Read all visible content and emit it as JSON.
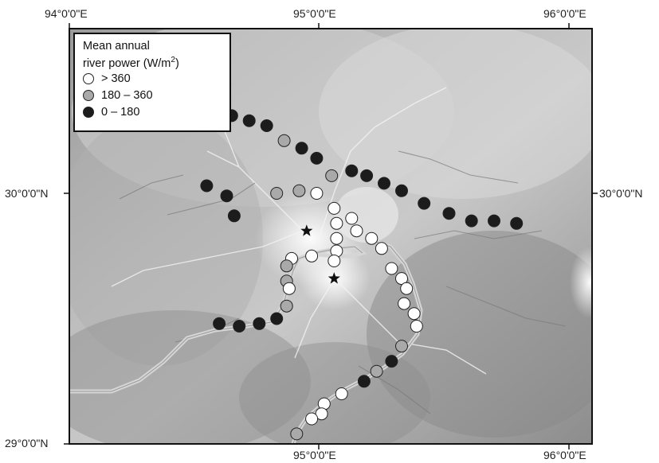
{
  "axes": {
    "top_labels": [
      "94°0'0\"E",
      "95°0'0\"E",
      "96°0'0\"E"
    ],
    "bottom_labels": [
      "95°0'0\"E",
      "96°0'0\"E"
    ],
    "left_labels": [
      "30°0'0\"N",
      "29°0'0\"N"
    ],
    "right_labels": [
      "30°0'0\"N"
    ]
  },
  "legend": {
    "title_line1": "Mean annual",
    "title_line2": "river power (W/m",
    "title_sup": "2",
    "title_close": ")",
    "items": [
      {
        "label": "> 360",
        "color": "#ffffff"
      },
      {
        "label": "180 – 360",
        "color": "#a9a9a9"
      },
      {
        "label": "0 – 180",
        "color": "#1c1c1c"
      }
    ]
  },
  "colors": {
    "high": "#ffffff",
    "mid": "#a9a9a9",
    "low": "#1c1c1c",
    "river": "#c8c8c8",
    "terrain_light": "#ededed",
    "terrain_dark": "#7d7d7d"
  },
  "stars": [
    {
      "lon": 94.95,
      "lat": 29.85
    },
    {
      "lon": 95.06,
      "lat": 29.66
    }
  ],
  "points": [
    {
      "lon": 94.65,
      "lat": 30.31,
      "class": "low"
    },
    {
      "lon": 94.72,
      "lat": 30.29,
      "class": "low"
    },
    {
      "lon": 94.79,
      "lat": 30.27,
      "class": "low"
    },
    {
      "lon": 94.86,
      "lat": 30.21,
      "class": "mid"
    },
    {
      "lon": 94.93,
      "lat": 30.18,
      "class": "low"
    },
    {
      "lon": 94.99,
      "lat": 30.14,
      "class": "low"
    },
    {
      "lon": 95.05,
      "lat": 30.07,
      "class": "mid"
    },
    {
      "lon": 95.13,
      "lat": 30.09,
      "class": "low"
    },
    {
      "lon": 95.19,
      "lat": 30.07,
      "class": "low"
    },
    {
      "lon": 95.26,
      "lat": 30.04,
      "class": "low"
    },
    {
      "lon": 95.33,
      "lat": 30.01,
      "class": "low"
    },
    {
      "lon": 95.42,
      "lat": 29.96,
      "class": "low"
    },
    {
      "lon": 95.52,
      "lat": 29.92,
      "class": "low"
    },
    {
      "lon": 95.61,
      "lat": 29.89,
      "class": "low"
    },
    {
      "lon": 95.7,
      "lat": 29.89,
      "class": "low"
    },
    {
      "lon": 95.79,
      "lat": 29.88,
      "class": "low"
    },
    {
      "lon": 94.55,
      "lat": 30.03,
      "class": "low"
    },
    {
      "lon": 94.63,
      "lat": 29.99,
      "class": "low"
    },
    {
      "lon": 94.66,
      "lat": 29.91,
      "class": "low"
    },
    {
      "lon": 94.83,
      "lat": 30.0,
      "class": "mid"
    },
    {
      "lon": 94.92,
      "lat": 30.01,
      "class": "mid"
    },
    {
      "lon": 94.99,
      "lat": 30.0,
      "class": "high"
    },
    {
      "lon": 95.06,
      "lat": 29.94,
      "class": "high"
    },
    {
      "lon": 95.07,
      "lat": 29.88,
      "class": "high"
    },
    {
      "lon": 95.13,
      "lat": 29.9,
      "class": "high"
    },
    {
      "lon": 95.15,
      "lat": 29.85,
      "class": "high"
    },
    {
      "lon": 95.21,
      "lat": 29.82,
      "class": "high"
    },
    {
      "lon": 95.25,
      "lat": 29.78,
      "class": "high"
    },
    {
      "lon": 95.07,
      "lat": 29.82,
      "class": "high"
    },
    {
      "lon": 95.07,
      "lat": 29.77,
      "class": "high"
    },
    {
      "lon": 95.06,
      "lat": 29.73,
      "class": "high"
    },
    {
      "lon": 94.97,
      "lat": 29.75,
      "class": "high"
    },
    {
      "lon": 94.89,
      "lat": 29.74,
      "class": "high"
    },
    {
      "lon": 94.87,
      "lat": 29.71,
      "class": "mid"
    },
    {
      "lon": 94.87,
      "lat": 29.65,
      "class": "mid"
    },
    {
      "lon": 94.88,
      "lat": 29.62,
      "class": "high"
    },
    {
      "lon": 94.87,
      "lat": 29.55,
      "class": "mid"
    },
    {
      "lon": 94.83,
      "lat": 29.5,
      "class": "low"
    },
    {
      "lon": 94.76,
      "lat": 29.48,
      "class": "low"
    },
    {
      "lon": 94.68,
      "lat": 29.47,
      "class": "low"
    },
    {
      "lon": 94.6,
      "lat": 29.48,
      "class": "low"
    },
    {
      "lon": 95.29,
      "lat": 29.7,
      "class": "high"
    },
    {
      "lon": 95.33,
      "lat": 29.66,
      "class": "high"
    },
    {
      "lon": 95.35,
      "lat": 29.62,
      "class": "high"
    },
    {
      "lon": 95.34,
      "lat": 29.56,
      "class": "high"
    },
    {
      "lon": 95.38,
      "lat": 29.52,
      "class": "high"
    },
    {
      "lon": 95.39,
      "lat": 29.47,
      "class": "high"
    },
    {
      "lon": 95.33,
      "lat": 29.39,
      "class": "mid"
    },
    {
      "lon": 95.29,
      "lat": 29.33,
      "class": "low"
    },
    {
      "lon": 95.23,
      "lat": 29.29,
      "class": "mid"
    },
    {
      "lon": 95.18,
      "lat": 29.25,
      "class": "low"
    },
    {
      "lon": 95.09,
      "lat": 29.2,
      "class": "high"
    },
    {
      "lon": 95.02,
      "lat": 29.16,
      "class": "high"
    },
    {
      "lon": 95.01,
      "lat": 29.12,
      "class": "high"
    },
    {
      "lon": 94.97,
      "lat": 29.1,
      "class": "high"
    },
    {
      "lon": 94.91,
      "lat": 29.04,
      "class": "mid"
    }
  ]
}
